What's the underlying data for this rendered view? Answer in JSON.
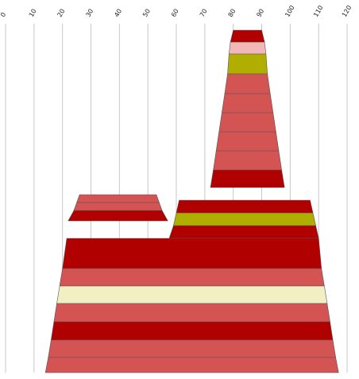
{
  "chart_data": {
    "type": "area",
    "title": "",
    "xlabel": "",
    "ylabel": "",
    "xlim": [
      0,
      120
    ],
    "x_ticks": [
      "0",
      "10",
      "20",
      "30",
      "40",
      "50",
      "60",
      "70",
      "80",
      "90",
      "100",
      "110",
      "120"
    ],
    "grid": true,
    "legend": "none",
    "palette": {
      "dark_red": "#b00000",
      "red": "#d45454",
      "pink": "#f2b8b8",
      "olive": "#b0ae00",
      "cream": "#f2efc2",
      "grid": "#c8c8c8",
      "outline": "#555555"
    },
    "bands": [
      {
        "left_top": 80,
        "right_top": 90,
        "left_bottom": 79,
        "right_bottom": 91,
        "color": "dark_red"
      },
      {
        "left_top": 79,
        "right_top": 91,
        "left_bottom": 78.5,
        "right_bottom": 91.5,
        "color": "pink"
      },
      {
        "left_top": 78.5,
        "right_top": 91.5,
        "left_bottom": 78,
        "right_bottom": 92,
        "color": "olive"
      },
      {
        "left_top": 78,
        "right_top": 92,
        "left_bottom": 77,
        "right_bottom": 93,
        "color": "red"
      },
      {
        "left_top": 77,
        "right_top": 93,
        "left_bottom": 76,
        "right_bottom": 94,
        "color": "red"
      },
      {
        "left_top": 76,
        "right_top": 94,
        "left_bottom": 75,
        "right_bottom": 95,
        "color": "red"
      },
      {
        "left_top": 75,
        "right_top": 95,
        "left_bottom": 74,
        "right_bottom": 96,
        "color": "red"
      },
      {
        "left_top": 74,
        "right_top": 96,
        "left_bottom": 73,
        "right_bottom": 97,
        "color": "red"
      },
      {
        "left_top": 73,
        "right_top": 97,
        "left_bottom": 72,
        "right_bottom": 98,
        "color": "dark_red"
      },
      {
        "left_top": 26,
        "right_top": 53,
        "left_bottom": 25,
        "right_bottom": 54,
        "color": "red"
      },
      {
        "left_top": 25,
        "right_top": 54,
        "left_bottom": 24,
        "right_bottom": 55,
        "color": "red"
      },
      {
        "left_top": 24,
        "right_top": 55,
        "left_bottom": 22,
        "right_bottom": 57,
        "color": "dark_red"
      },
      {
        "left_top": 61,
        "right_top": 107,
        "left_bottom": 60,
        "right_bottom": 108,
        "color": "dark_red"
      },
      {
        "left_top": 60,
        "right_top": 108,
        "left_bottom": 59,
        "right_bottom": 109,
        "color": "olive"
      },
      {
        "left_top": 59,
        "right_top": 109,
        "left_bottom": 57.5,
        "right_bottom": 110,
        "color": "dark_red"
      },
      {
        "left_top": 21.5,
        "right_top": 110,
        "left_bottom": 20,
        "right_bottom": 111,
        "color": "dark_red"
      },
      {
        "left_top": 20,
        "right_top": 111,
        "left_bottom": 19,
        "right_bottom": 112,
        "color": "red"
      },
      {
        "left_top": 19,
        "right_top": 112,
        "left_bottom": 18,
        "right_bottom": 113,
        "color": "cream"
      },
      {
        "left_top": 18,
        "right_top": 113,
        "left_bottom": 17,
        "right_bottom": 114,
        "color": "red"
      },
      {
        "left_top": 17,
        "right_top": 114,
        "left_bottom": 16,
        "right_bottom": 115,
        "color": "dark_red"
      },
      {
        "left_top": 16,
        "right_top": 115,
        "left_bottom": 15,
        "right_bottom": 116,
        "color": "red"
      },
      {
        "left_top": 15,
        "right_top": 116,
        "left_bottom": 14,
        "right_bottom": 117,
        "color": "red"
      }
    ]
  }
}
